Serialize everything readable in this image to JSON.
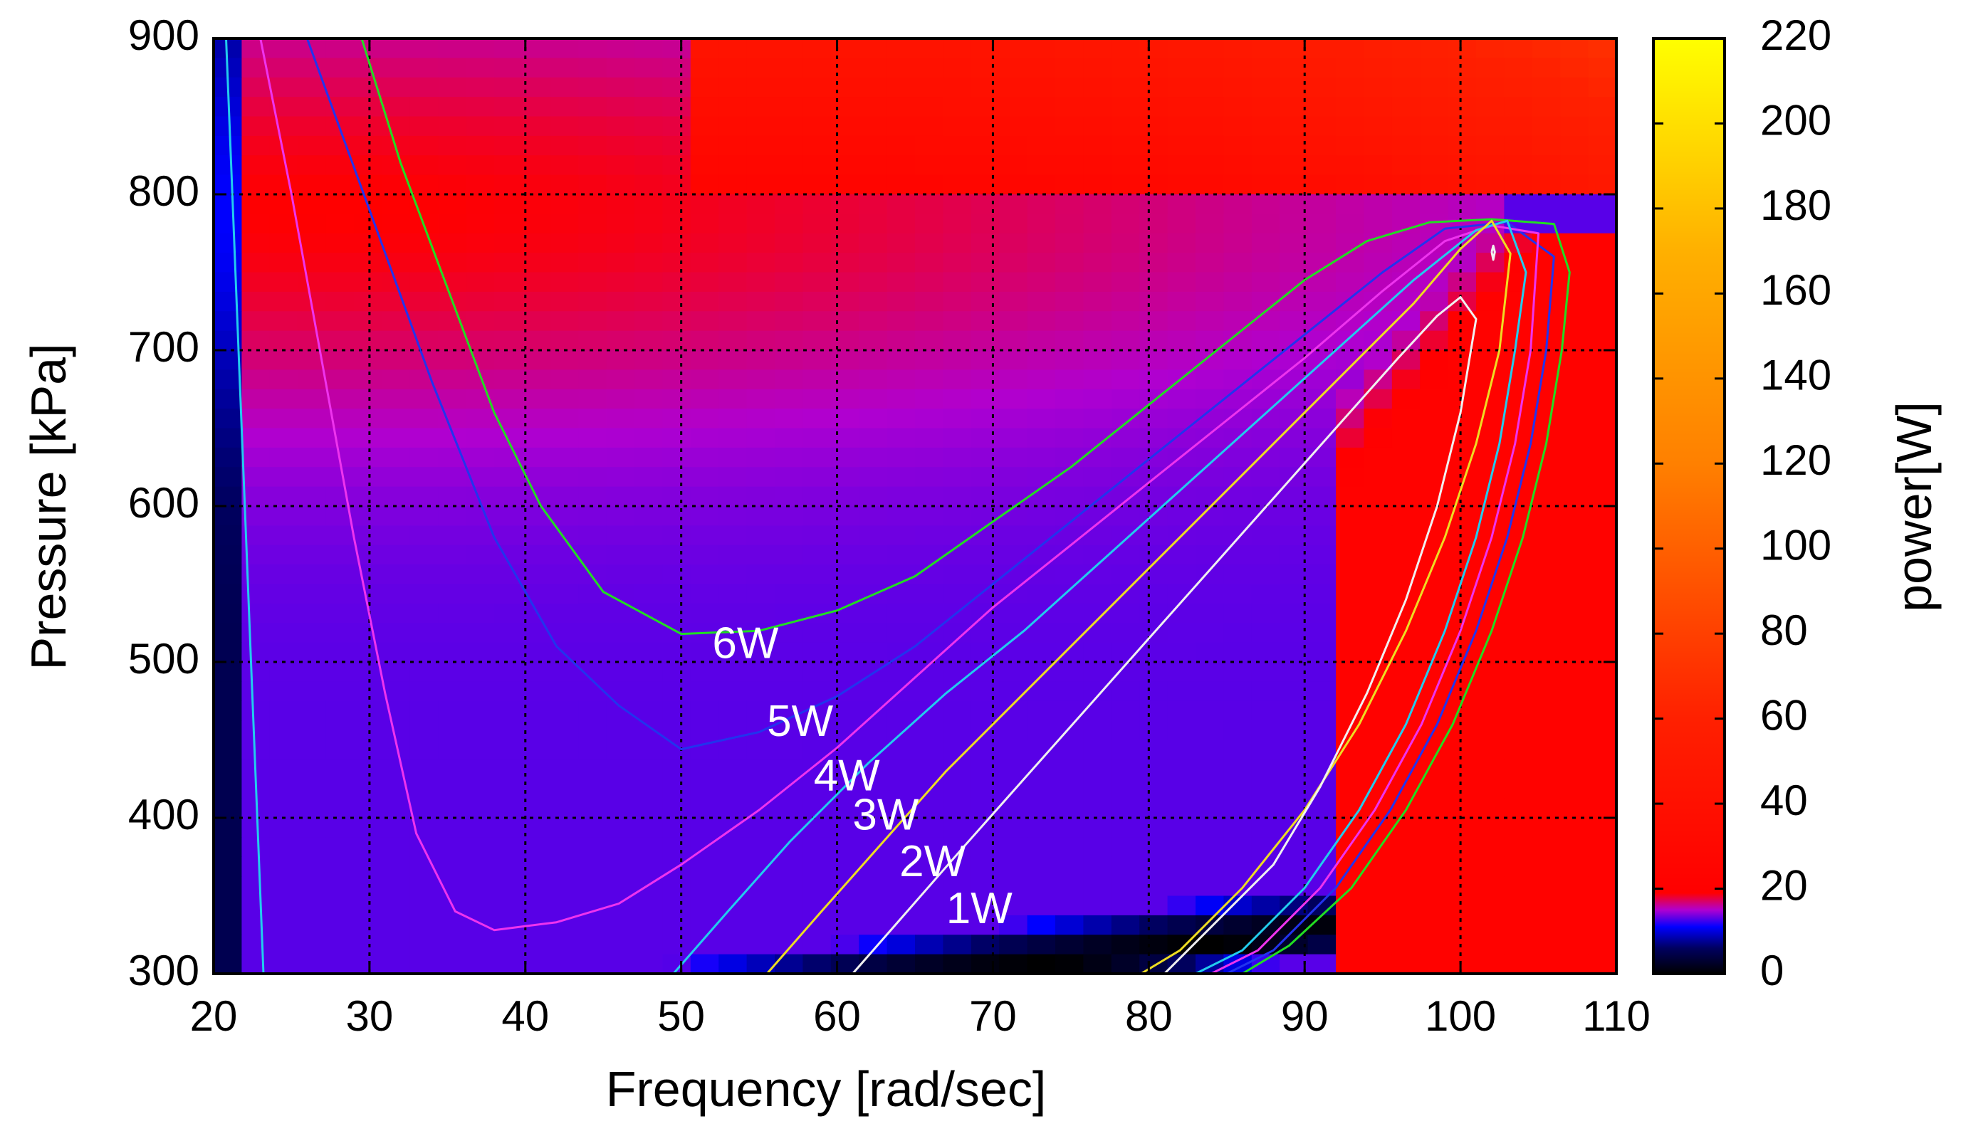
{
  "chart_data": {
    "type": "heatmap",
    "title": "",
    "xlabel": "Frequency [rad/sec]",
    "ylabel": "Pressure [kPa]",
    "colorbar_label": "power[W]",
    "xlim": [
      20,
      110
    ],
    "ylim": [
      300,
      900
    ],
    "clim": [
      0,
      220
    ],
    "x_ticks": [
      "20",
      "30",
      "40",
      "50",
      "60",
      "70",
      "80",
      "90",
      "100",
      "110"
    ],
    "y_ticks": [
      "300",
      "400",
      "500",
      "600",
      "700",
      "800",
      "900"
    ],
    "colorbar_ticks": [
      "0",
      "20",
      "40",
      "60",
      "80",
      "100",
      "120",
      "140",
      "160",
      "180",
      "200",
      "220"
    ],
    "grid": true,
    "colormap": [
      {
        "v": 0,
        "color": "#000000"
      },
      {
        "v": 6,
        "color": "#000060"
      },
      {
        "v": 11,
        "color": "#0000ff"
      },
      {
        "v": 15,
        "color": "#b000d0"
      },
      {
        "v": 19,
        "color": "#ff0000"
      },
      {
        "v": 60,
        "color": "#ff2000"
      },
      {
        "v": 120,
        "color": "#ff8000"
      },
      {
        "v": 170,
        "color": "#ffb000"
      },
      {
        "v": 220,
        "color": "#ffff00"
      }
    ],
    "contours": [
      {
        "name": "6W",
        "color": "#22dd22",
        "label": {
          "text": "6W",
          "x": 52,
          "y": 510
        },
        "lines": [
          [
            [
              29.5,
              900
            ],
            [
              32,
              820
            ],
            [
              35,
              740
            ],
            [
              38,
              660
            ],
            [
              41,
              600
            ],
            [
              45,
              545
            ],
            [
              50,
              518
            ],
            [
              55,
              520
            ],
            [
              60,
              533
            ],
            [
              65,
              555
            ],
            [
              70,
              590
            ],
            [
              75,
              625
            ],
            [
              80,
              665
            ],
            [
              85,
              705
            ],
            [
              90,
              745
            ],
            [
              94,
              770
            ],
            [
              98,
              782
            ],
            [
              102,
              784
            ],
            [
              106,
              781
            ],
            [
              107,
              750
            ],
            [
              106.5,
              700
            ],
            [
              105.5,
              640
            ],
            [
              104,
              580
            ],
            [
              102,
              520
            ],
            [
              99.5,
              460
            ],
            [
              96.5,
              405
            ],
            [
              93,
              355
            ],
            [
              89,
              318
            ],
            [
              86,
              300
            ]
          ]
        ]
      },
      {
        "name": "5W",
        "color": "#2233ee",
        "label": {
          "text": "5W",
          "x": 55.5,
          "y": 460
        },
        "lines": [
          [
            [
              26,
              900
            ],
            [
              30,
              790
            ],
            [
              34,
              680
            ],
            [
              38,
              580
            ],
            [
              42,
              510
            ],
            [
              46,
              472
            ],
            [
              50,
              444
            ],
            [
              55,
              455
            ],
            [
              60,
              478
            ],
            [
              65,
              510
            ],
            [
              70,
              550
            ],
            [
              75,
              590
            ],
            [
              80,
              630
            ],
            [
              85,
              670
            ],
            [
              90,
              710
            ],
            [
              95,
              750
            ],
            [
              99,
              778
            ],
            [
              103,
              782
            ],
            [
              106,
              760
            ],
            [
              105.5,
              700
            ],
            [
              104.5,
              640
            ],
            [
              103,
              580
            ],
            [
              101,
              520
            ],
            [
              98.5,
              460
            ],
            [
              95.5,
              405
            ],
            [
              92,
              355
            ],
            [
              88,
              315
            ],
            [
              85,
              300
            ]
          ]
        ]
      },
      {
        "name": "4W",
        "color": "#ee33ee",
        "label": {
          "text": "4W",
          "x": 58.5,
          "y": 425
        },
        "lines": [
          [
            [
              23,
              900
            ],
            [
              25,
              800
            ],
            [
              27,
              690
            ],
            [
              29,
              580
            ],
            [
              31,
              480
            ],
            [
              33,
              390
            ],
            [
              35.5,
              340
            ],
            [
              38,
              328
            ],
            [
              42,
              333
            ],
            [
              46,
              345
            ],
            [
              50,
              370
            ],
            [
              55,
              405
            ],
            [
              60,
              445
            ],
            [
              65,
              490
            ],
            [
              70,
              535
            ],
            [
              75,
              575
            ],
            [
              80,
              615
            ],
            [
              85,
              655
            ],
            [
              90,
              695
            ],
            [
              95,
              738
            ],
            [
              99,
              770
            ],
            [
              102,
              780
            ],
            [
              105,
              775
            ],
            [
              104.5,
              700
            ],
            [
              103.5,
              640
            ],
            [
              102,
              580
            ],
            [
              100,
              520
            ],
            [
              97.5,
              460
            ],
            [
              94.5,
              405
            ],
            [
              91,
              355
            ],
            [
              87,
              315
            ],
            [
              84,
              300
            ]
          ]
        ]
      },
      {
        "name": "3W",
        "color": "#22ccee",
        "label": {
          "text": "3W",
          "x": 61,
          "y": 400
        },
        "lines": [
          [
            [
              20.8,
              900
            ],
            [
              21.2,
              800
            ],
            [
              21.6,
              700
            ],
            [
              22,
              600
            ],
            [
              22.4,
              500
            ],
            [
              22.8,
              400
            ],
            [
              23.2,
              300
            ]
          ],
          [
            [
              49.5,
              300
            ],
            [
              53,
              340
            ],
            [
              57,
              385
            ],
            [
              62,
              435
            ],
            [
              67,
              480
            ],
            [
              72,
              520
            ],
            [
              77,
              565
            ],
            [
              82,
              610
            ],
            [
              87,
              655
            ],
            [
              92,
              700
            ],
            [
              97,
              745
            ],
            [
              101,
              777
            ],
            [
              103,
              783
            ],
            [
              104.2,
              750
            ],
            [
              103.5,
              700
            ],
            [
              102.5,
              640
            ],
            [
              101,
              580
            ],
            [
              99,
              520
            ],
            [
              96.5,
              460
            ],
            [
              93.5,
              405
            ],
            [
              90,
              355
            ],
            [
              86,
              315
            ],
            [
              83,
              300
            ]
          ]
        ]
      },
      {
        "name": "2W",
        "color": "#eedd22",
        "label": {
          "text": "2W",
          "x": 64,
          "y": 370
        },
        "lines": [
          [
            [
              55.5,
              300
            ],
            [
              59,
              340
            ],
            [
              63,
              385
            ],
            [
              67,
              430
            ],
            [
              72,
              480
            ],
            [
              77,
              530
            ],
            [
              82,
              580
            ],
            [
              87,
              630
            ],
            [
              92,
              680
            ],
            [
              97,
              730
            ],
            [
              100,
              765
            ],
            [
              102,
              783
            ],
            [
              103.2,
              762
            ],
            [
              102.5,
              700
            ],
            [
              101,
              640
            ],
            [
              99,
              580
            ],
            [
              96.5,
              520
            ],
            [
              93.5,
              460
            ],
            [
              90,
              405
            ],
            [
              86,
              355
            ],
            [
              82,
              315
            ],
            [
              79.5,
              300
            ]
          ]
        ]
      },
      {
        "name": "1W",
        "color": "#f0f0f0",
        "label": {
          "text": "1W",
          "x": 67,
          "y": 340
        },
        "lines": [
          [
            [
              61,
              300
            ],
            [
              64.5,
              340
            ],
            [
              68,
              380
            ],
            [
              72,
              425
            ],
            [
              76,
              470
            ],
            [
              80,
              515
            ],
            [
              84,
              560
            ],
            [
              88,
              605
            ],
            [
              92,
              650
            ],
            [
              96,
              695
            ],
            [
              98.5,
              722
            ],
            [
              100,
              734
            ],
            [
              101,
              720
            ],
            [
              100,
              660
            ],
            [
              98.5,
              600
            ],
            [
              96.5,
              540
            ],
            [
              94,
              480
            ],
            [
              91,
              420
            ],
            [
              88,
              370
            ],
            [
              84,
              330
            ],
            [
              81,
              300
            ]
          ],
          [
            [
              102,
              763
            ],
            [
              102.1,
              758
            ],
            [
              102.2,
              763
            ],
            [
              102.1,
              767
            ],
            [
              102,
              763
            ]
          ]
        ]
      }
    ]
  }
}
